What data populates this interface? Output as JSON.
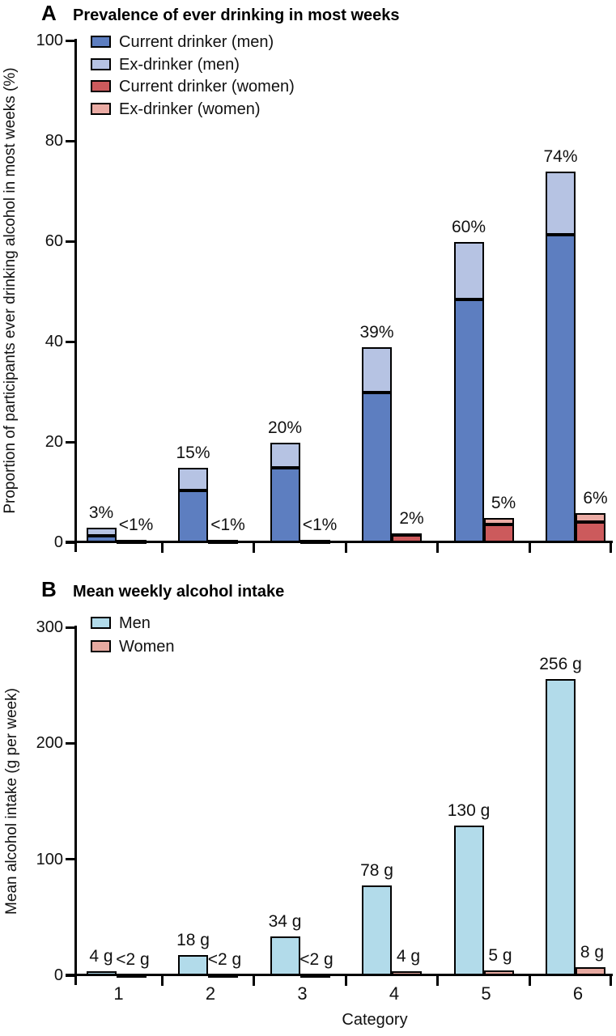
{
  "chart_data": [
    {
      "panel_label": "A",
      "type": "stacked-bar",
      "title": "Prevalence of ever drinking in most weeks",
      "ylabel": "Proportion of participants ever drinking alcohol in most weeks (%)",
      "xlabel": "",
      "ylim": [
        0,
        100
      ],
      "yticks": [
        "0",
        "20",
        "40",
        "60",
        "80",
        "100"
      ],
      "categories": [
        "1",
        "2",
        "3",
        "4",
        "5",
        "6"
      ],
      "legend_position": "top-left-inside",
      "grid": false,
      "series": [
        {
          "name": "Current drinker (men)",
          "group": "men",
          "color": "#5d7ec0",
          "values": [
            1.4,
            10.5,
            15.0,
            30.0,
            48.5,
            61.5
          ]
        },
        {
          "name": "Ex-drinker (men)",
          "group": "men",
          "color": "#b6c3e3",
          "values": [
            1.6,
            4.5,
            5.0,
            9.0,
            11.5,
            12.5
          ]
        },
        {
          "name": "Current drinker (women)",
          "group": "women",
          "color": "#cc5a5c",
          "values": [
            0.5,
            0.5,
            0.5,
            1.7,
            3.7,
            4.2
          ]
        },
        {
          "name": "Ex-drinker (women)",
          "group": "women",
          "color": "#eaaba4",
          "values": [
            0.2,
            0.2,
            0.2,
            0.3,
            1.3,
            1.8
          ]
        }
      ],
      "bar_totals_labels": {
        "men": [
          "3%",
          "15%",
          "20%",
          "39%",
          "60%",
          "74%"
        ],
        "women": [
          "<1%",
          "<1%",
          "<1%",
          "2%",
          "5%",
          "6%"
        ]
      }
    },
    {
      "panel_label": "B",
      "type": "bar",
      "title": "Mean weekly alcohol intake",
      "ylabel": "Mean alcohol intake (g per week)",
      "xlabel": "Category",
      "ylim": [
        0,
        300
      ],
      "yticks": [
        "0",
        "100",
        "200",
        "300"
      ],
      "categories": [
        "1",
        "2",
        "3",
        "4",
        "5",
        "6"
      ],
      "legend_position": "top-left-inside",
      "grid": false,
      "series": [
        {
          "name": "Men",
          "group": "men",
          "color": "#b2dbea",
          "values": [
            4,
            18,
            34,
            78,
            130,
            256
          ]
        },
        {
          "name": "Women",
          "group": "women",
          "color": "#e7a9a0",
          "values": [
            1.5,
            1.5,
            1.5,
            4,
            5,
            8
          ]
        }
      ],
      "bar_totals_labels": {
        "men": [
          "4 g",
          "18 g",
          "34 g",
          "78 g",
          "130 g",
          "256 g"
        ],
        "women": [
          "<2 g",
          "<2 g",
          "<2 g",
          "4 g",
          "5 g",
          "8 g"
        ]
      }
    }
  ],
  "colors": {
    "axis": "#000000",
    "background": "#ffffff",
    "bar_outline": "#000000"
  }
}
